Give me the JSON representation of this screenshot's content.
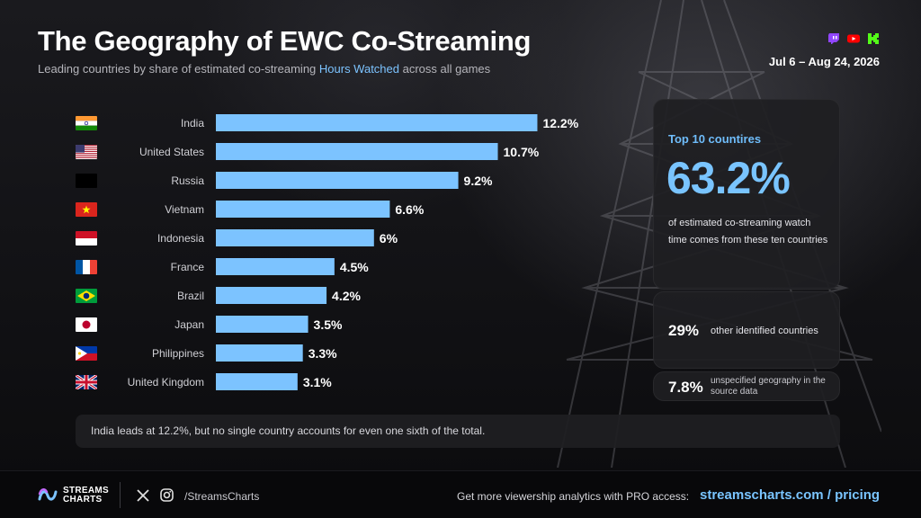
{
  "header": {
    "title": "The Geography of EWC Co-Streaming",
    "subtitle_pre": "Leading countries by share of estimated co-streaming ",
    "subtitle_hl": "Hours Watched",
    "subtitle_post": " across all games",
    "date_range": "Jul 6 – Aug 24, 2026",
    "platform_icons": [
      "twitch-icon",
      "youtube-icon",
      "kick-icon"
    ]
  },
  "chart_data": {
    "type": "bar",
    "orientation": "horizontal",
    "categories": [
      "India",
      "United States",
      "Russia",
      "Vietnam",
      "Indonesia",
      "France",
      "Brazil",
      "Japan",
      "Philippines",
      "United Kingdom"
    ],
    "values": [
      12.2,
      10.7,
      9.2,
      6.6,
      6,
      4.5,
      4.2,
      3.5,
      3.3,
      3.1
    ],
    "value_labels": [
      "12.2%",
      "10.7%",
      "9.2%",
      "6.6%",
      "6%",
      "4.5%",
      "4.2%",
      "3.5%",
      "3.3%",
      "3.1%"
    ],
    "bar_color": "#7cc3ff",
    "grid": false
  },
  "flags": [
    "india-flag",
    "us-flag",
    "russia-flag",
    "vietnam-flag",
    "indonesia-flag",
    "france-flag",
    "brazil-flag",
    "japan-flag",
    "philippines-flag",
    "uk-flag"
  ],
  "summary": {
    "top_label": "Top 10 countires",
    "top_value": "63.2%",
    "top_desc": "of estimated co-streaming watch time comes from these ten countries",
    "other_value": "29%",
    "other_label": "other identified countries",
    "unspec_value": "7.8%",
    "unspec_label": "unspecified geography in the source data"
  },
  "note": "India leads at 12.2%, but no single country accounts for even one sixth of the total.",
  "footer": {
    "logo_line1": "STREAMS",
    "logo_line2": "CHARTS",
    "handle": "/StreamsCharts",
    "cta": "Get more viewership analytics with PRO access:",
    "link": "streamscharts.com / pricing"
  },
  "colors": {
    "accent": "#7cc3ff",
    "background": "#0d0d10",
    "card": "#1e1e22"
  }
}
